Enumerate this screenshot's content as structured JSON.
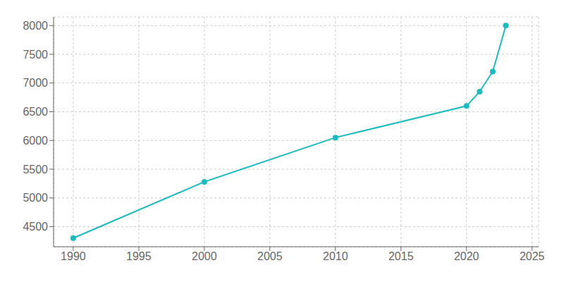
{
  "chart_data": {
    "type": "line",
    "x": [
      1990,
      2000,
      2010,
      2020,
      2021,
      2022,
      2023
    ],
    "values": [
      4300,
      5280,
      6050,
      6600,
      6850,
      7200,
      8000
    ],
    "color": "#1abcbe",
    "marker": "circle",
    "xlim": [
      1988.5,
      2025.5
    ],
    "ylim": [
      4150,
      8150
    ],
    "xticks": [
      1990,
      1995,
      2000,
      2005,
      2010,
      2015,
      2020,
      2025
    ],
    "yticks": [
      4500,
      5000,
      5500,
      6000,
      6500,
      7000,
      7500,
      8000
    ],
    "grid": true
  }
}
